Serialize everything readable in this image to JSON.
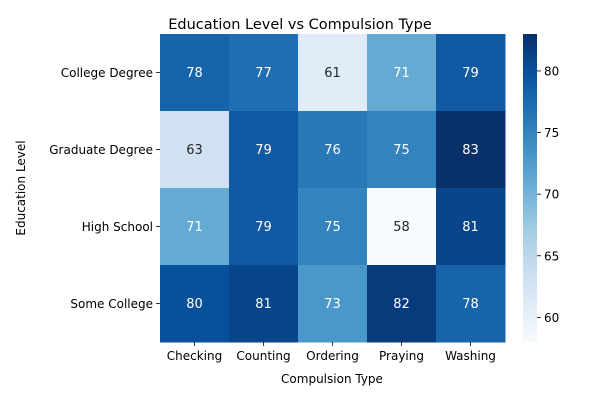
{
  "chart_data": {
    "type": "heatmap",
    "title": "Education Level vs Compulsion Type",
    "xlabel": "Compulsion Type",
    "ylabel": "Education Level",
    "x_categories": [
      "Checking",
      "Counting",
      "Ordering",
      "Praying",
      "Washing"
    ],
    "y_categories": [
      "College Degree",
      "Graduate Degree",
      "High School",
      "Some College"
    ],
    "values": [
      [
        78,
        77,
        61,
        71,
        79
      ],
      [
        63,
        79,
        76,
        75,
        83
      ],
      [
        71,
        79,
        75,
        58,
        81
      ],
      [
        80,
        81,
        73,
        82,
        78
      ]
    ],
    "colorbar": {
      "min": 58,
      "max": 83,
      "ticks": [
        60,
        65,
        70,
        75,
        80
      ],
      "colormap": "Blues"
    }
  }
}
